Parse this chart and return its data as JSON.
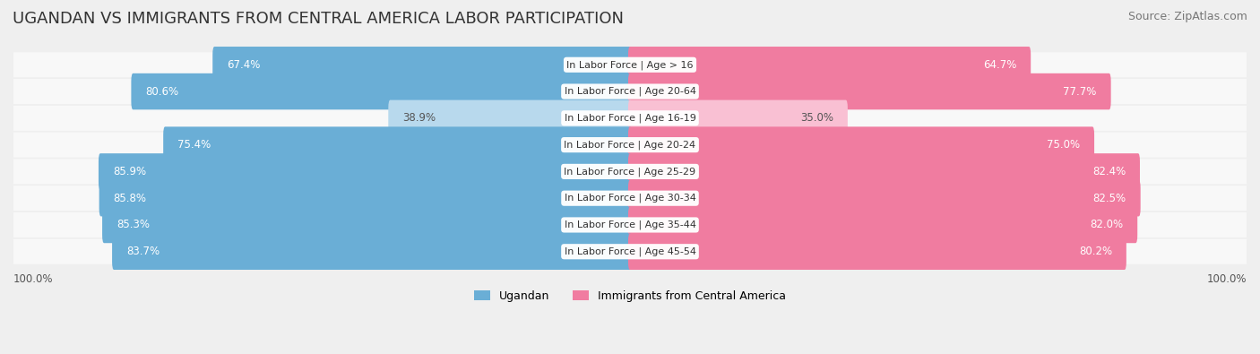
{
  "title": "UGANDAN VS IMMIGRANTS FROM CENTRAL AMERICA LABOR PARTICIPATION",
  "source": "Source: ZipAtlas.com",
  "categories": [
    "In Labor Force | Age > 16",
    "In Labor Force | Age 20-64",
    "In Labor Force | Age 16-19",
    "In Labor Force | Age 20-24",
    "In Labor Force | Age 25-29",
    "In Labor Force | Age 30-34",
    "In Labor Force | Age 35-44",
    "In Labor Force | Age 45-54"
  ],
  "ugandan_values": [
    67.4,
    80.6,
    38.9,
    75.4,
    85.9,
    85.8,
    85.3,
    83.7
  ],
  "immigrant_values": [
    64.7,
    77.7,
    35.0,
    75.0,
    82.4,
    82.5,
    82.0,
    80.2
  ],
  "ugandan_color": "#6aaed6",
  "ugandan_light_color": "#b8d9ed",
  "immigrant_color": "#f07ca0",
  "immigrant_light_color": "#f9c0d3",
  "background_color": "#efefef",
  "label_color_dark": "#555555",
  "label_color_white": "#ffffff",
  "max_value": 100.0,
  "bar_height": 0.38,
  "title_fontsize": 13,
  "source_fontsize": 9,
  "label_fontsize": 8.5,
  "category_fontsize": 8,
  "legend_fontsize": 9
}
